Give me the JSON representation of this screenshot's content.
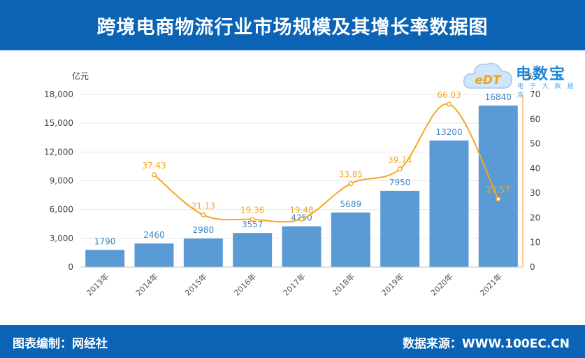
{
  "header": {
    "title": "跨境电商物流行业市场规模及其增长率数据图"
  },
  "footer": {
    "left": "图表编制：网经社",
    "right": "数据来源：WWW.100EC.CN"
  },
  "logo": {
    "brand": "电数宝",
    "sub": "电 子 大 数 据 库",
    "badge": "eDT"
  },
  "colors": {
    "header_bg": "#0a63b5",
    "bar": "#5b9bd5",
    "line": "#f5a623",
    "bar_label": "#3a86c8"
  },
  "chart_data": {
    "type": "bar",
    "categories": [
      "2013年",
      "2014年",
      "2015年",
      "2016年",
      "2017年",
      "2018年",
      "2019年",
      "2020年",
      "2021年"
    ],
    "series": [
      {
        "type": "bar",
        "axis": "left",
        "values": [
          1790,
          2460,
          2980,
          3557,
          4250,
          5689,
          7950,
          13200,
          16840
        ]
      },
      {
        "type": "line",
        "axis": "right",
        "values": [
          null,
          37.43,
          21.13,
          19.36,
          19.48,
          33.85,
          39.74,
          66.03,
          27.57
        ]
      }
    ],
    "ylabel": "亿元",
    "ylabel_right": "%",
    "ylim": [
      0,
      18000
    ],
    "yticks": [
      "0",
      "3,000",
      "6,000",
      "9,000",
      "12,000",
      "15,000",
      "18,000"
    ],
    "ylim_right": [
      0,
      70
    ],
    "yticks_right": [
      "0",
      "10",
      "20",
      "30",
      "40",
      "50",
      "60",
      "70"
    ]
  }
}
